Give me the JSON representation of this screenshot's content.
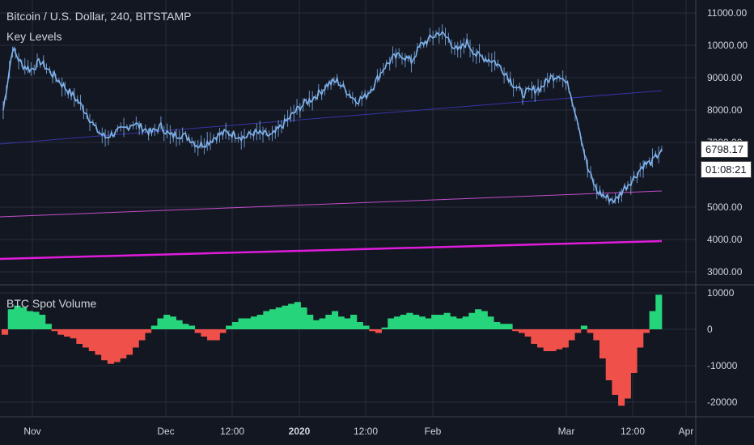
{
  "header": {
    "title": "Bitcoin / U.S. Dollar, 240, BITSTAMP",
    "price_indicator": "Key Levels",
    "volume_indicator": "BTC Spot Volume"
  },
  "tags": {
    "last_price": "6798.17",
    "countdown": "01:08:21"
  },
  "colors": {
    "background": "#131722",
    "grid": "#2a2e39",
    "candle": "#7fb2ec",
    "vol_up": "#26d47c",
    "vol_down": "#f0504a",
    "level_upper": "#3734a8",
    "level_mid": "#c24ec9",
    "level_low": "#e01cdb"
  },
  "chart_data": [
    {
      "type": "line",
      "id": "price",
      "title": "Bitcoin / U.S. Dollar, 240, BITSTAMP",
      "ylim": [
        2600,
        11400
      ],
      "y_ticks": [
        "3000.00",
        "4000.00",
        "5000.00",
        "6000.00",
        "7000.00",
        "8000.00",
        "9000.00",
        "10000.00",
        "11000.00"
      ],
      "x_ticks": [
        "Nov",
        "Dec",
        "12:00",
        "2020",
        "12:00",
        "Feb",
        "Mar",
        "12:00",
        "Apr"
      ],
      "series": [
        {
          "values": [
            8000,
            9900,
            9400,
            9250,
            9500,
            9200,
            8900,
            8600,
            8300,
            7900,
            7400,
            7150,
            7300,
            7400,
            7600,
            7450,
            7300,
            7500,
            7200,
            7250,
            7150,
            6900,
            7000,
            7200,
            7300,
            7250,
            7150,
            7300,
            7250,
            7200,
            7500,
            7800,
            8100,
            8300,
            8500,
            8800,
            8900,
            8600,
            8300,
            8400,
            8800,
            9300,
            9600,
            9700,
            9500,
            10000,
            10200,
            10400,
            10200,
            9800,
            10100,
            9700,
            9600,
            9500,
            9200,
            8800,
            8500,
            8600,
            8700,
            9000,
            9100,
            8700,
            7600,
            6200,
            5500,
            5300,
            5200,
            5600,
            5900,
            6300,
            6400,
            6798
          ]
        },
        {
          "values": [
            6950,
            8600
          ]
        },
        {
          "values": [
            4700,
            5500
          ]
        },
        {
          "values": [
            3400,
            3950
          ]
        }
      ]
    },
    {
      "type": "bar",
      "id": "volume",
      "title": "BTC Spot Volume",
      "ylim": [
        -24000,
        12000
      ],
      "y_ticks": [
        "10000",
        "0",
        "-10000",
        "-20000"
      ],
      "values": [
        -1500,
        5500,
        6500,
        6000,
        5000,
        4800,
        4000,
        1500,
        -500,
        -1500,
        -2000,
        -2500,
        -4000,
        -5000,
        -6000,
        -7000,
        -8500,
        -9500,
        -9000,
        -8000,
        -7000,
        -5000,
        -3000,
        -1000,
        1000,
        3000,
        4000,
        3500,
        2500,
        1500,
        1000,
        -1000,
        -2000,
        -3000,
        -3000,
        -1000,
        1000,
        2000,
        3000,
        3000,
        3500,
        4000,
        5000,
        5500,
        6000,
        6500,
        7000,
        7500,
        6000,
        4000,
        2500,
        3000,
        4000,
        5000,
        3500,
        3000,
        4000,
        2000,
        1000,
        -500,
        -1000,
        500,
        3000,
        3500,
        4000,
        4500,
        4000,
        3500,
        3000,
        4000,
        4000,
        4500,
        3500,
        3000,
        3500,
        4500,
        5500,
        5000,
        3500,
        2000,
        1500,
        1500,
        -500,
        -1000,
        -2000,
        -4000,
        -5000,
        -6000,
        -6000,
        -5500,
        -5000,
        -3000,
        -1000,
        1000,
        -1000,
        -3000,
        -8000,
        -14000,
        -18000,
        -21000,
        -19000,
        -12000,
        -5000,
        -1000,
        5000,
        9500
      ]
    }
  ]
}
